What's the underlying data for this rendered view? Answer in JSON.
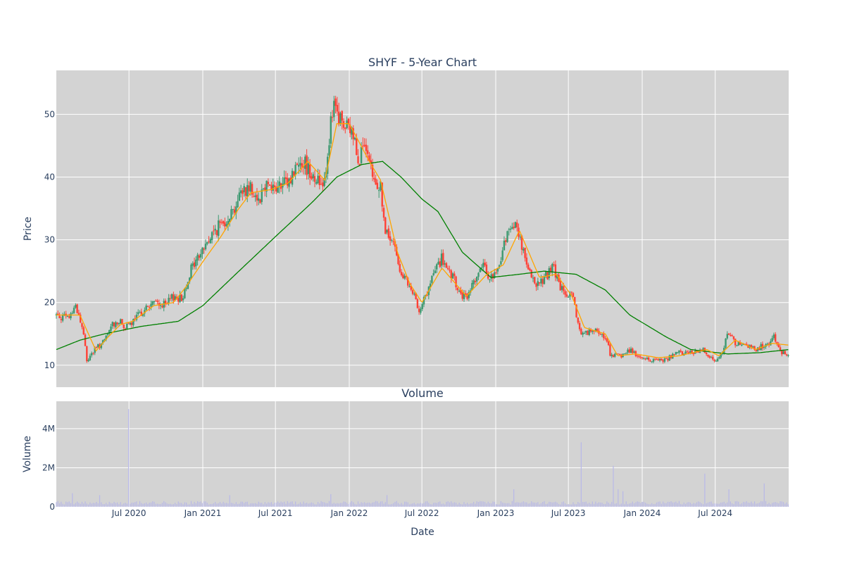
{
  "chart_data": {
    "type": "candlestick",
    "title": "SHYF - 5-Year Chart",
    "subplot_titles": [
      "",
      "Volume"
    ],
    "xlabel": "Date",
    "x_tick_labels": [
      "Jul 2020",
      "Jan 2021",
      "Jul 2021",
      "Jan 2022",
      "Jul 2022",
      "Jan 2023",
      "Jul 2023",
      "Jan 2024",
      "Jul 2024"
    ],
    "x_tick_dates": [
      "2020-07-01",
      "2021-01-01",
      "2021-07-01",
      "2022-01-01",
      "2022-07-01",
      "2023-01-01",
      "2023-07-01",
      "2024-01-01",
      "2024-07-01"
    ],
    "xlim": [
      "2020-01-02",
      "2024-12-31"
    ],
    "price_panel": {
      "ylabel": "Price",
      "ylim": [
        6.5,
        57
      ],
      "y_ticks": [
        10,
        20,
        30,
        40,
        50
      ],
      "y_tick_labels": [
        "10",
        "20",
        "30",
        "40",
        "50"
      ],
      "grid": true,
      "increasing_color": "#3d9970",
      "decreasing_color": "#ff4136",
      "close_keypoints": [
        [
          "2020-01-02",
          18.0
        ],
        [
          "2020-02-01",
          17.5
        ],
        [
          "2020-02-20",
          19.6
        ],
        [
          "2020-03-10",
          15.0
        ],
        [
          "2020-03-18",
          10.5
        ],
        [
          "2020-03-25",
          11.5
        ],
        [
          "2020-04-15",
          13.0
        ],
        [
          "2020-05-01",
          13.8
        ],
        [
          "2020-05-20",
          16.5
        ],
        [
          "2020-06-05",
          17.0
        ],
        [
          "2020-06-25",
          16.0
        ],
        [
          "2020-07-10",
          16.8
        ],
        [
          "2020-08-01",
          18.5
        ],
        [
          "2020-09-01",
          20.0
        ],
        [
          "2020-10-01",
          19.5
        ],
        [
          "2020-10-20",
          21.0
        ],
        [
          "2020-11-10",
          20.5
        ],
        [
          "2020-11-30",
          25.0
        ],
        [
          "2021-01-01",
          28.5
        ],
        [
          "2021-02-01",
          31.5
        ],
        [
          "2021-03-01",
          33.5
        ],
        [
          "2021-03-20",
          35.0
        ],
        [
          "2021-04-10",
          38.0
        ],
        [
          "2021-05-01",
          38.5
        ],
        [
          "2021-05-20",
          36.5
        ],
        [
          "2021-06-10",
          39.5
        ],
        [
          "2021-07-01",
          38.0
        ],
        [
          "2021-08-01",
          39.0
        ],
        [
          "2021-09-01",
          43.0
        ],
        [
          "2021-09-20",
          41.5
        ],
        [
          "2021-10-20",
          39.0
        ],
        [
          "2021-11-01",
          40.0
        ],
        [
          "2021-11-15",
          48.0
        ],
        [
          "2021-11-25",
          51.0
        ],
        [
          "2021-12-05",
          49.5
        ],
        [
          "2021-12-20",
          48.0
        ],
        [
          "2022-01-10",
          47.0
        ],
        [
          "2022-01-25",
          43.0
        ],
        [
          "2022-02-05",
          45.0
        ],
        [
          "2022-02-20",
          41.5
        ],
        [
          "2022-03-05",
          39.0
        ],
        [
          "2022-03-20",
          38.5
        ],
        [
          "2022-04-01",
          31.0
        ],
        [
          "2022-04-20",
          29.5
        ],
        [
          "2022-05-10",
          25.0
        ],
        [
          "2022-05-25",
          23.0
        ],
        [
          "2022-06-10",
          21.0
        ],
        [
          "2022-06-25",
          19.0
        ],
        [
          "2022-07-15",
          21.5
        ],
        [
          "2022-08-01",
          25.0
        ],
        [
          "2022-08-20",
          27.0
        ],
        [
          "2022-09-01",
          25.0
        ],
        [
          "2022-09-20",
          23.5
        ],
        [
          "2022-10-01",
          21.5
        ],
        [
          "2022-10-20",
          20.5
        ],
        [
          "2022-11-10",
          24.0
        ],
        [
          "2022-12-01",
          25.5
        ],
        [
          "2022-12-20",
          24.0
        ],
        [
          "2023-01-05",
          24.5
        ],
        [
          "2023-01-20",
          29.0
        ],
        [
          "2023-02-10",
          33.0
        ],
        [
          "2023-03-01",
          31.0
        ],
        [
          "2023-03-15",
          26.5
        ],
        [
          "2023-04-01",
          23.5
        ],
        [
          "2023-04-20",
          23.0
        ],
        [
          "2023-05-10",
          24.5
        ],
        [
          "2023-05-25",
          25.5
        ],
        [
          "2023-06-10",
          22.5
        ],
        [
          "2023-06-25",
          21.0
        ],
        [
          "2023-07-10",
          21.0
        ],
        [
          "2023-08-01",
          15.0
        ],
        [
          "2023-09-01",
          15.5
        ],
        [
          "2023-10-01",
          14.5
        ],
        [
          "2023-10-15",
          11.5
        ],
        [
          "2023-11-10",
          11.5
        ],
        [
          "2023-12-01",
          12.5
        ],
        [
          "2024-01-01",
          11.0
        ],
        [
          "2024-02-01",
          10.8
        ],
        [
          "2024-03-01",
          11.0
        ],
        [
          "2024-04-01",
          12.0
        ],
        [
          "2024-05-01",
          12.0
        ],
        [
          "2024-06-01",
          12.5
        ],
        [
          "2024-07-01",
          10.5
        ],
        [
          "2024-07-20",
          12.5
        ],
        [
          "2024-08-05",
          15.5
        ],
        [
          "2024-08-20",
          13.5
        ],
        [
          "2024-09-10",
          13.0
        ],
        [
          "2024-10-10",
          12.5
        ],
        [
          "2024-11-10",
          13.5
        ],
        [
          "2024-11-25",
          14.5
        ],
        [
          "2024-12-15",
          12.0
        ],
        [
          "2024-12-31",
          11.8
        ]
      ],
      "ma_short": {
        "color": "#ffa500",
        "points": [
          [
            "2020-01-02",
            18.0
          ],
          [
            "2020-03-01",
            18.0
          ],
          [
            "2020-04-10",
            12.3
          ],
          [
            "2020-05-10",
            14.5
          ],
          [
            "2020-06-10",
            16.5
          ],
          [
            "2020-07-10",
            17.0
          ],
          [
            "2020-09-01",
            19.5
          ],
          [
            "2020-10-20",
            20.0
          ],
          [
            "2020-11-20",
            22.5
          ],
          [
            "2021-01-01",
            26.5
          ],
          [
            "2021-02-15",
            30.5
          ],
          [
            "2021-04-01",
            35.0
          ],
          [
            "2021-05-01",
            37.5
          ],
          [
            "2021-06-20",
            38.0
          ],
          [
            "2021-08-01",
            39.0
          ],
          [
            "2021-09-20",
            42.5
          ],
          [
            "2021-11-01",
            39.5
          ],
          [
            "2021-12-01",
            48.5
          ],
          [
            "2022-01-01",
            48.5
          ],
          [
            "2022-02-20",
            42.5
          ],
          [
            "2022-03-20",
            39.5
          ],
          [
            "2022-05-01",
            28.0
          ],
          [
            "2022-06-01",
            23.0
          ],
          [
            "2022-07-01",
            20.0
          ],
          [
            "2022-08-20",
            25.5
          ],
          [
            "2022-10-20",
            21.0
          ],
          [
            "2022-12-10",
            24.5
          ],
          [
            "2023-01-20",
            26.0
          ],
          [
            "2023-03-01",
            31.5
          ],
          [
            "2023-04-20",
            24.0
          ],
          [
            "2023-06-01",
            24.5
          ],
          [
            "2023-07-10",
            21.0
          ],
          [
            "2023-08-10",
            16.0
          ],
          [
            "2023-10-01",
            15.0
          ],
          [
            "2023-11-01",
            11.5
          ],
          [
            "2023-12-15",
            11.8
          ],
          [
            "2024-02-10",
            11.2
          ],
          [
            "2024-04-01",
            11.5
          ],
          [
            "2024-06-10",
            12.5
          ],
          [
            "2024-07-10",
            11.5
          ],
          [
            "2024-08-20",
            14.0
          ],
          [
            "2024-10-10",
            12.5
          ],
          [
            "2024-11-20",
            13.5
          ],
          [
            "2024-12-31",
            13.2
          ]
        ]
      },
      "ma_long": {
        "color": "#008000",
        "points": [
          [
            "2020-01-02",
            12.5
          ],
          [
            "2020-03-01",
            14.0
          ],
          [
            "2020-05-01",
            15.0
          ],
          [
            "2020-08-01",
            16.2
          ],
          [
            "2020-11-01",
            17.0
          ],
          [
            "2021-01-01",
            19.5
          ],
          [
            "2021-04-01",
            25.0
          ],
          [
            "2021-07-01",
            30.5
          ],
          [
            "2021-10-01",
            36.0
          ],
          [
            "2021-12-01",
            40.0
          ],
          [
            "2022-02-01",
            42.0
          ],
          [
            "2022-03-25",
            42.5
          ],
          [
            "2022-05-10",
            40.0
          ],
          [
            "2022-07-01",
            36.5
          ],
          [
            "2022-08-10",
            34.5
          ],
          [
            "2022-10-10",
            28.0
          ],
          [
            "2022-12-20",
            24.0
          ],
          [
            "2023-03-01",
            24.5
          ],
          [
            "2023-05-01",
            25.0
          ],
          [
            "2023-07-20",
            24.5
          ],
          [
            "2023-10-01",
            22.0
          ],
          [
            "2023-12-01",
            18.0
          ],
          [
            "2024-03-01",
            14.5
          ],
          [
            "2024-05-01",
            12.5
          ],
          [
            "2024-08-01",
            11.8
          ],
          [
            "2024-10-20",
            12.0
          ],
          [
            "2024-12-31",
            12.5
          ]
        ]
      }
    },
    "volume_panel": {
      "ylabel": "Volume",
      "ylim": [
        0,
        5400000
      ],
      "y_ticks": [
        0,
        2000000,
        4000000
      ],
      "y_tick_labels": [
        "0",
        "2M",
        "4M"
      ],
      "bar_color": "#b8b8e8",
      "base_volume": 200000,
      "spikes": [
        [
          "2020-02-10",
          700000
        ],
        [
          "2020-03-20",
          750000
        ],
        [
          "2020-04-20",
          600000
        ],
        [
          "2020-06-30",
          5000000
        ],
        [
          "2020-07-10",
          500000
        ],
        [
          "2021-03-10",
          600000
        ],
        [
          "2021-11-15",
          650000
        ],
        [
          "2022-04-05",
          600000
        ],
        [
          "2022-08-01",
          500000
        ],
        [
          "2023-01-20",
          650000
        ],
        [
          "2023-02-15",
          900000
        ],
        [
          "2023-06-25",
          1000000
        ],
        [
          "2023-08-01",
          3300000
        ],
        [
          "2023-08-20",
          700000
        ],
        [
          "2023-10-20",
          2100000
        ],
        [
          "2023-11-01",
          900000
        ],
        [
          "2023-11-15",
          800000
        ],
        [
          "2024-06-05",
          1700000
        ],
        [
          "2024-07-01",
          1000000
        ],
        [
          "2024-08-05",
          900000
        ],
        [
          "2024-11-01",
          1200000
        ],
        [
          "2024-12-20",
          1000000
        ]
      ]
    }
  }
}
